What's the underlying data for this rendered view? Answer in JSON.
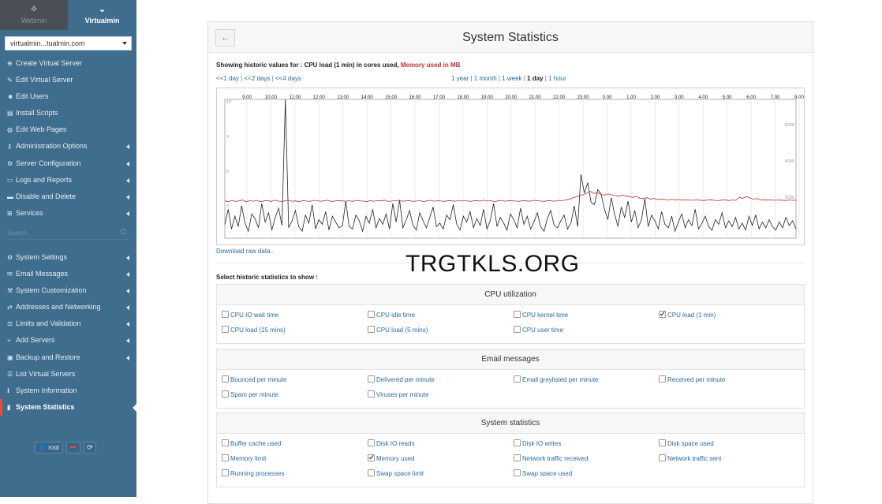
{
  "sidebar": {
    "tabs": [
      {
        "label": "Webmin"
      },
      {
        "label": "Virtualmin"
      }
    ],
    "domain": "virtualmin...tualmin.com",
    "items": [
      {
        "label": "Create Virtual Server",
        "icon": "plus-circle-icon",
        "arrow": false
      },
      {
        "label": "Edit Virtual Server",
        "icon": "edit-icon",
        "arrow": false
      },
      {
        "label": "Edit Users",
        "icon": "users-icon",
        "arrow": false
      },
      {
        "label": "Install Scripts",
        "icon": "file-icon",
        "arrow": false
      },
      {
        "label": "Edit Web Pages",
        "icon": "globe-icon",
        "arrow": false
      },
      {
        "label": "Administration Options",
        "icon": "key-icon",
        "arrow": true
      },
      {
        "label": "Server Configuration",
        "icon": "gears-icon",
        "arrow": true
      },
      {
        "label": "Logs and Reports",
        "icon": "folder-icon",
        "arrow": true
      },
      {
        "label": "Disable and Delete",
        "icon": "trash-icon",
        "arrow": true
      },
      {
        "label": "Services",
        "icon": "sitemap-icon",
        "arrow": true
      }
    ],
    "search_placeholder": "Search",
    "items2": [
      {
        "label": "System Settings",
        "icon": "cog-icon",
        "arrow": true
      },
      {
        "label": "Email Messages",
        "icon": "envelope-icon",
        "arrow": true
      },
      {
        "label": "System Customization",
        "icon": "wrench-icon",
        "arrow": true
      },
      {
        "label": "Addresses and Networking",
        "icon": "network-icon",
        "arrow": true
      },
      {
        "label": "Limits and Validation",
        "icon": "balance-icon",
        "arrow": true
      },
      {
        "label": "Add Servers",
        "icon": "plus-icon",
        "arrow": true
      },
      {
        "label": "Backup and Restore",
        "icon": "save-icon",
        "arrow": true
      },
      {
        "label": "List Virtual Servers",
        "icon": "list-icon",
        "arrow": false
      },
      {
        "label": "System Information",
        "icon": "info-icon",
        "arrow": false
      },
      {
        "label": "System Statistics",
        "icon": "chart-icon",
        "arrow": false,
        "active": true
      }
    ],
    "user": "root"
  },
  "page": {
    "title": "System Statistics",
    "showing_prefix": "Showing historic values for : CPU load (1 min) in cores used,",
    "showing_mem": "Memory used in MB",
    "nav_left": [
      "<<1 day",
      "<<2 days",
      "<<4 days"
    ],
    "nav_right": [
      "1 year",
      "1 month",
      "1 week",
      "1 day",
      "1 hour"
    ],
    "nav_current": "1 day",
    "download": "Download raw data..",
    "select_label": "Select historic statistics to show :",
    "watermark": "TRGTKLS.ORG"
  },
  "sections": [
    {
      "title": "CPU utilization",
      "rows": [
        [
          {
            "label": "CPU IO wait time",
            "checked": false
          },
          {
            "label": "CPU idle time",
            "checked": false
          },
          {
            "label": "CPU kernel time",
            "checked": false
          },
          {
            "label": "CPU load (1 min)",
            "checked": true
          }
        ],
        [
          {
            "label": "CPU load (15 mins)",
            "checked": false
          },
          {
            "label": "CPU load (5 mins)",
            "checked": false
          },
          {
            "label": "CPU user time",
            "checked": false
          }
        ]
      ]
    },
    {
      "title": "Email messages",
      "rows": [
        [
          {
            "label": "Bounced per minute",
            "checked": false
          },
          {
            "label": "Delivered per minute",
            "checked": false
          },
          {
            "label": "Email greylisted per minute",
            "checked": false
          },
          {
            "label": "Received per minute",
            "checked": false
          }
        ],
        [
          {
            "label": "Spam per minute",
            "checked": false
          },
          {
            "label": "Viruses per minute",
            "checked": false
          }
        ]
      ]
    },
    {
      "title": "System statistics",
      "rows": [
        [
          {
            "label": "Buffer cache used",
            "checked": false
          },
          {
            "label": "Disk IO reads",
            "checked": false
          },
          {
            "label": "Disk IO writes",
            "checked": false
          },
          {
            "label": "Disk space used",
            "checked": false
          }
        ],
        [
          {
            "label": "Memory limit",
            "checked": false
          },
          {
            "label": "Memory used",
            "checked": true
          },
          {
            "label": "Network traffic received",
            "checked": false
          },
          {
            "label": "Network traffic sent",
            "checked": false
          }
        ],
        [
          {
            "label": "Running processes",
            "checked": false
          },
          {
            "label": "Swap space limit",
            "checked": false
          },
          {
            "label": "Swap space used",
            "checked": false
          }
        ]
      ]
    }
  ],
  "chart_data": {
    "type": "line",
    "x_ticks": [
      "9.00",
      "10.00",
      "11.00",
      "12.00",
      "13.00",
      "14.00",
      "15.00",
      "16.00",
      "17.00",
      "18.00",
      "19.00",
      "20.00",
      "21.00",
      "22.00",
      "23.00",
      "0.00",
      "1.00",
      "2.00",
      "3.00",
      "4.00",
      "5.00",
      "6.00",
      "7.00",
      "8.00"
    ],
    "y_left_ticks": [
      "12",
      "9",
      "6",
      "3"
    ],
    "y_right_ticks": [
      "6000",
      "4000",
      "2000"
    ],
    "colors": {
      "cpu": "#222222",
      "memory": "#c0282d"
    },
    "series": [
      {
        "name": "CPU load (1 min)",
        "y_axis": "left",
        "ylim": [
          0,
          12
        ],
        "values": [
          1.2,
          2.5,
          0.8,
          1.9,
          1.0,
          2.8,
          1.3,
          0.6,
          2.1,
          1.7,
          0.9,
          3.0,
          1.4,
          2.2,
          0.7,
          1.8,
          2.6,
          1.1,
          12.0,
          0.9,
          1.5,
          2.4,
          1.0,
          0.6,
          2.0,
          1.3,
          2.9,
          0.8,
          1.6,
          1.2,
          2.3,
          0.7,
          1.9,
          1.4,
          0.9,
          1.1,
          3.2,
          1.0,
          0.8,
          2.0,
          1.5,
          0.6,
          1.9,
          1.3,
          2.5,
          0.9,
          1.7,
          1.2,
          2.1,
          0.8,
          3.0,
          1.4,
          3.3,
          0.9,
          1.6,
          2.4,
          1.1,
          0.7,
          2.2,
          1.5,
          0.9,
          1.8,
          2.7,
          1.0,
          1.3,
          0.8,
          2.0,
          1.6,
          2.9,
          1.2,
          0.7,
          1.9,
          1.4,
          2.3,
          0.9,
          1.7,
          1.1,
          2.5,
          0.8,
          1.5,
          3.0,
          1.0,
          1.8,
          1.3,
          0.7,
          2.1,
          1.6,
          0.9,
          2.6,
          1.2,
          1.9,
          0.8,
          1.4,
          2.2,
          1.0,
          0.6,
          1.7,
          2.4,
          1.1,
          0.9,
          1.5,
          2.0,
          0.8,
          1.3,
          2.8,
          1.0,
          5.5,
          3.9,
          4.8,
          3.1,
          2.9,
          4.2,
          3.8,
          2.5,
          1.6,
          3.5,
          2.1,
          1.0,
          2.7,
          1.8,
          3.2,
          1.4,
          2.4,
          0.9,
          1.6,
          3.4,
          1.0,
          2.0,
          1.5,
          0.8,
          2.3,
          1.2,
          0.9,
          1.9,
          0.6,
          1.4,
          2.1,
          0.9,
          1.6,
          1.1,
          2.5,
          0.8,
          1.3,
          1.9,
          1.0,
          0.7,
          1.6,
          1.2,
          2.2,
          0.9,
          1.5,
          1.0,
          1.8,
          0.8,
          1.3,
          0.7,
          1.9,
          1.1,
          2.0,
          0.8,
          1.4,
          0.9,
          1.6,
          1.0,
          0.7,
          1.4,
          0.9,
          1.8,
          1.1,
          1.5,
          0.8
        ]
      },
      {
        "name": "Memory used",
        "y_axis": "right",
        "ylim": [
          0,
          8000
        ],
        "values": [
          2150,
          2100,
          2180,
          2120,
          2150,
          2200,
          2100,
          2160,
          2130,
          2180,
          2100,
          2150,
          2170,
          2120,
          2190,
          2140,
          2110,
          2160,
          2180,
          2130,
          2150,
          2100,
          2170,
          2140,
          2120,
          2180,
          2160,
          2130,
          2150,
          2190,
          2110,
          2140,
          2170,
          2150,
          2130,
          2160,
          2120,
          2180,
          2150,
          2140,
          2100,
          2170,
          2130,
          2160,
          2150,
          2190,
          2120,
          2140,
          2160,
          2180,
          2130,
          2150,
          2170,
          2120,
          2140,
          2160,
          2110,
          2150,
          2180,
          2130,
          2160,
          2140,
          2120,
          2170,
          2150,
          2130,
          2180,
          2140,
          2160,
          2120,
          2150,
          2170,
          2130,
          2190,
          2140,
          2160,
          2110,
          2150,
          2180,
          2130,
          2160,
          2150,
          2140,
          2120,
          2170,
          2150,
          2130,
          2180,
          2160,
          2140,
          2120,
          2170,
          2150,
          2130,
          2180,
          2160,
          2200,
          2240,
          2320,
          2380,
          2450,
          2500,
          2600,
          2700,
          2580,
          2620,
          2520,
          2480,
          2550,
          2500,
          2460,
          2420,
          2480,
          2440,
          2400,
          2350,
          2420,
          2300,
          2280,
          2330,
          2250,
          2290,
          2220,
          2260,
          2230,
          2200,
          2250,
          2210,
          2230,
          2190,
          2220,
          2200,
          2180,
          2210,
          2190,
          2170,
          2200,
          2220,
          2180,
          2160,
          2190,
          2210,
          2170,
          2200,
          2180,
          2350,
          2300,
          2400,
          2320,
          2250,
          2280,
          2200,
          2220,
          2190,
          2210,
          2180,
          2200,
          2190,
          2170,
          2200,
          2180,
          2190
        ]
      }
    ]
  }
}
